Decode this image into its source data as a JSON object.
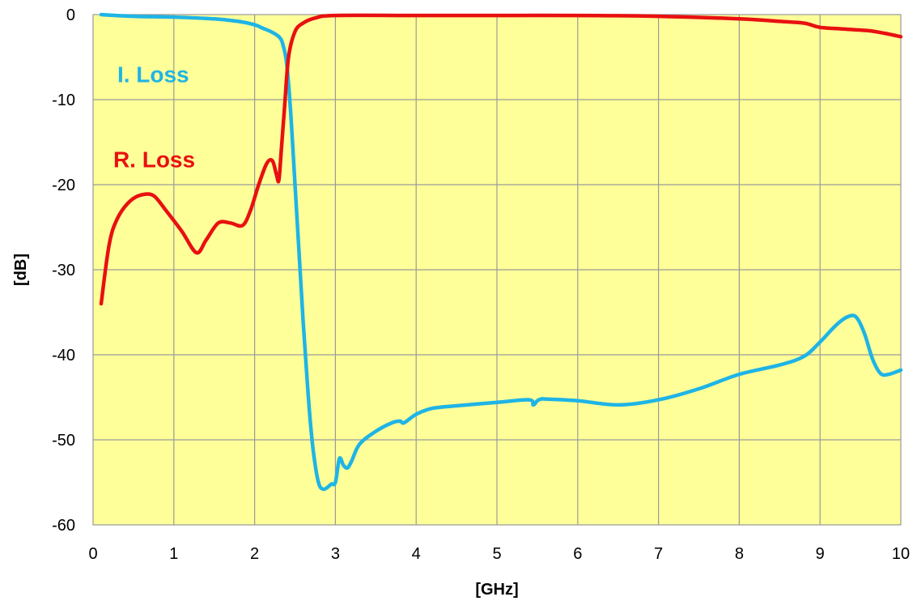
{
  "chart_data": {
    "type": "line",
    "xlabel": "[GHz]",
    "ylabel": "[dB]",
    "xlim": [
      0,
      10
    ],
    "ylim": [
      -60,
      0
    ],
    "x_ticks": [
      0,
      1,
      2,
      3,
      4,
      5,
      6,
      7,
      8,
      9,
      10
    ],
    "y_ticks": [
      0,
      -10,
      -20,
      -30,
      -40,
      -50,
      -60
    ],
    "grid": true,
    "plot_background": "#ffff99",
    "grid_color": "#9a9a9a",
    "legend": "none",
    "series": [
      {
        "name": "I. Loss",
        "color": "#1fb4e6",
        "x": [
          0.1,
          0.5,
          1.0,
          1.5,
          1.8,
          2.0,
          2.1,
          2.2,
          2.3,
          2.35,
          2.4,
          2.45,
          2.5,
          2.55,
          2.6,
          2.65,
          2.7,
          2.75,
          2.8,
          2.85,
          2.9,
          2.95,
          3.0,
          3.05,
          3.1,
          3.15,
          3.2,
          3.3,
          3.5,
          3.7,
          3.8,
          3.85,
          4.0,
          4.2,
          4.5,
          5.0,
          5.4,
          5.45,
          5.5,
          5.55,
          5.6,
          6.0,
          6.5,
          7.0,
          7.5,
          8.0,
          8.5,
          8.8,
          9.0,
          9.2,
          9.35,
          9.45,
          9.55,
          9.65,
          9.75,
          9.85,
          10.0
        ],
        "values": [
          0,
          -0.2,
          -0.3,
          -0.5,
          -0.8,
          -1.2,
          -1.6,
          -2.0,
          -2.6,
          -3.5,
          -6,
          -12,
          -20,
          -28,
          -36,
          -43,
          -49,
          -53,
          -55.3,
          -55.8,
          -55.6,
          -55.2,
          -55.0,
          -52.2,
          -53.0,
          -53.3,
          -52.5,
          -50.5,
          -49.0,
          -48.0,
          -47.8,
          -48.0,
          -47.0,
          -46.3,
          -46.0,
          -45.6,
          -45.3,
          -45.9,
          -45.4,
          -45.2,
          -45.2,
          -45.4,
          -45.9,
          -45.3,
          -44.0,
          -42.3,
          -41.2,
          -40.2,
          -38.5,
          -36.5,
          -35.5,
          -35.6,
          -37.5,
          -40.5,
          -42.2,
          -42.3,
          -41.8
        ]
      },
      {
        "name": "R. Loss",
        "color": "#e81010",
        "x": [
          0.1,
          0.2,
          0.3,
          0.45,
          0.6,
          0.75,
          0.9,
          1.1,
          1.28,
          1.4,
          1.55,
          1.7,
          1.85,
          1.95,
          2.05,
          2.15,
          2.22,
          2.27,
          2.3,
          2.33,
          2.37,
          2.42,
          2.5,
          2.6,
          2.75,
          3.0,
          4.0,
          5.0,
          6.0,
          7.0,
          8.0,
          8.5,
          8.8,
          9.0,
          9.3,
          9.6,
          9.8,
          10.0
        ],
        "values": [
          -34,
          -27,
          -24,
          -22,
          -21.2,
          -21.3,
          -23.0,
          -25.5,
          -28.0,
          -26.5,
          -24.5,
          -24.5,
          -24.8,
          -23.0,
          -20.0,
          -17.5,
          -17.2,
          -18.8,
          -19.5,
          -16,
          -11,
          -5,
          -2.0,
          -1.0,
          -0.4,
          -0.1,
          -0.1,
          -0.1,
          -0.1,
          -0.2,
          -0.5,
          -0.8,
          -1.0,
          -1.5,
          -1.7,
          -1.9,
          -2.2,
          -2.6
        ]
      }
    ],
    "annotations": [
      {
        "text": "I. Loss",
        "x": 0.3,
        "y": -7,
        "color": "#1fb4e6"
      },
      {
        "text": "R. Loss",
        "x": 0.25,
        "y": -17,
        "color": "#e81010"
      }
    ]
  }
}
